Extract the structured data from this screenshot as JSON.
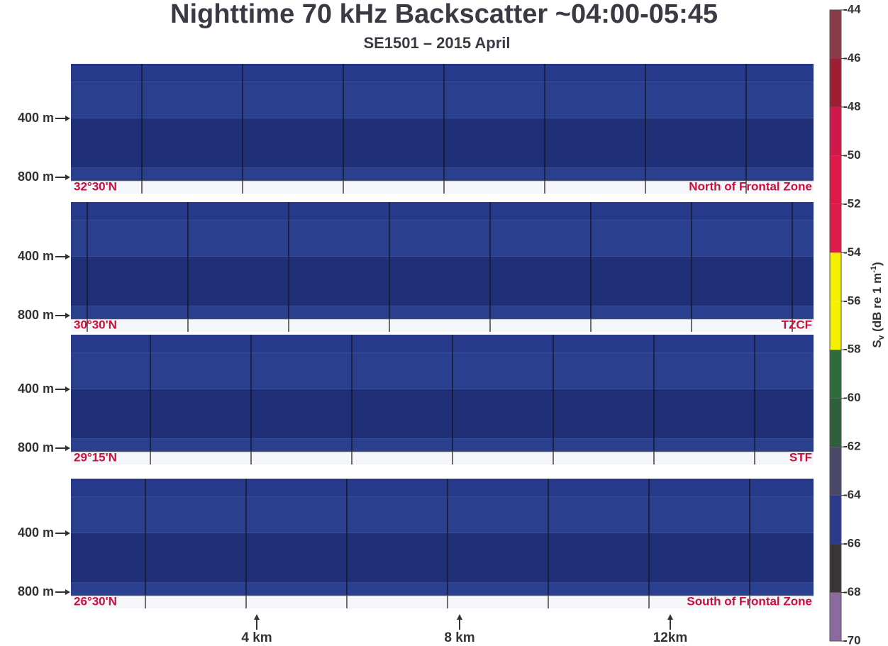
{
  "title": "Nighttime 70 kHz Backscatter ~04:00-05:45",
  "subtitle": "SE1501 – 2015 April",
  "panels": [
    {
      "latitude": "32°30'N",
      "zone": "North of Frontal Zone",
      "depths": [
        "400 m",
        "800 m"
      ]
    },
    {
      "latitude": "30°30'N",
      "zone": "TZCF",
      "depths": [
        "400 m",
        "800 m"
      ]
    },
    {
      "latitude": "29°15'N",
      "zone": "STF",
      "depths": [
        "400 m",
        "800 m"
      ]
    },
    {
      "latitude": "26°30'N",
      "zone": "South of Frontal Zone",
      "depths": [
        "400 m",
        "800 m"
      ]
    }
  ],
  "distances": [
    "4 km",
    "8 km",
    "12km"
  ],
  "colorbar": {
    "lim": [
      -70,
      -44
    ],
    "ticks": [
      -44,
      -46,
      -48,
      -50,
      -52,
      -54,
      -56,
      -58,
      -60,
      -62,
      -64,
      -66,
      -68,
      -70
    ],
    "colors": [
      "#8c6aa0",
      "#3a3434",
      "#2b3a8c",
      "#4a4868",
      "#2f5f3a",
      "#2f6a3a",
      "#f5f000",
      "#f5f000",
      "#e01c4c",
      "#e0184a",
      "#d0184a",
      "#a01e34",
      "#8a3a48"
    ],
    "label": [
      "S",
      "v",
      " (dB re 1 m",
      "-1",
      ")"
    ]
  }
}
